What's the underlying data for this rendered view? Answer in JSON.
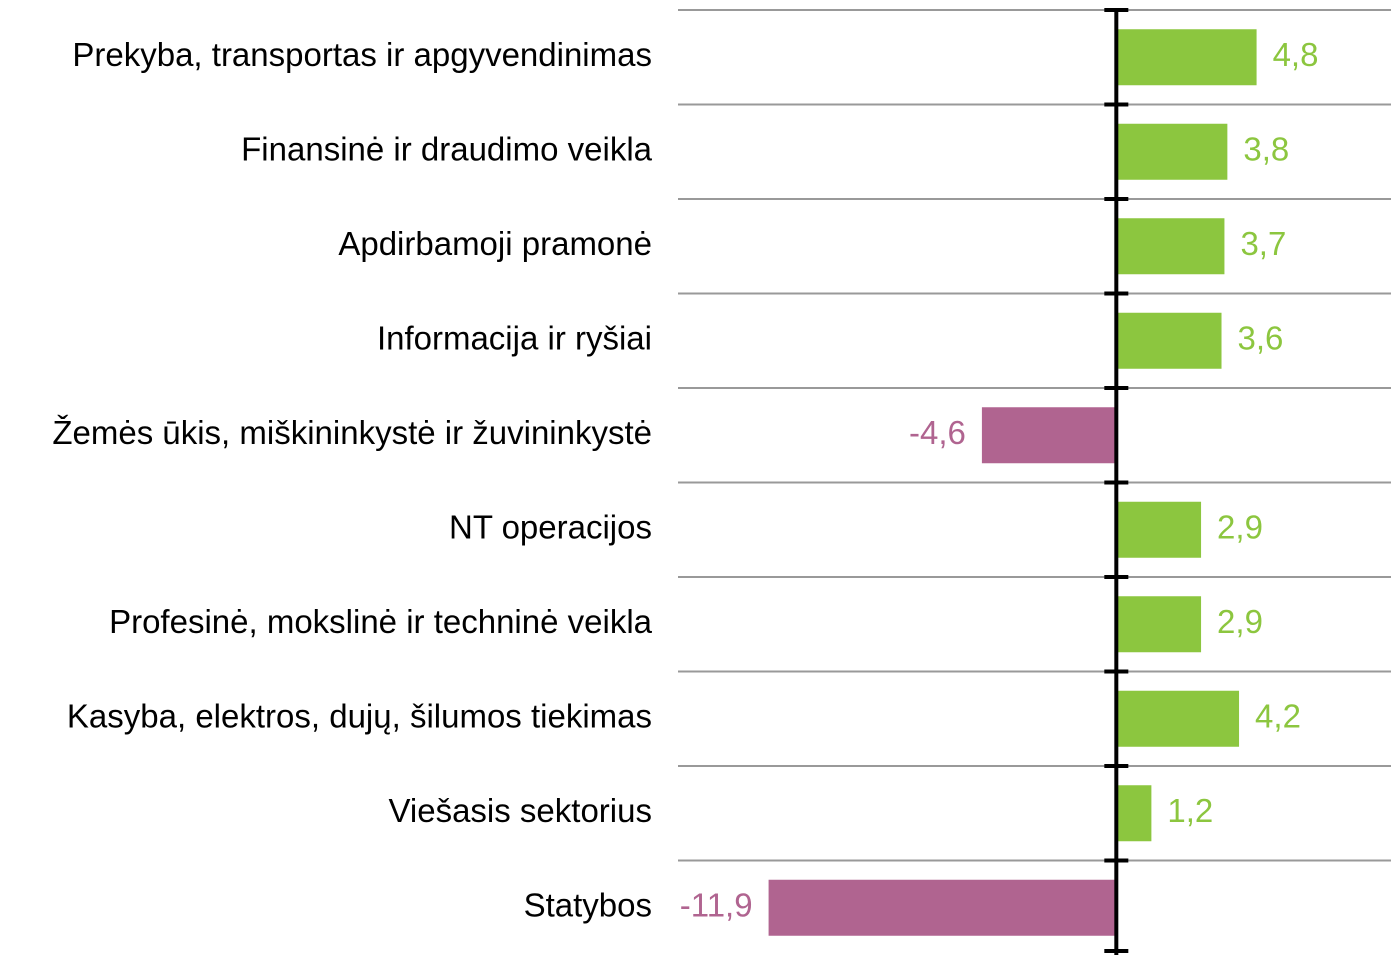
{
  "chart_data": {
    "type": "hbar",
    "categories": [
      "Prekyba, transportas ir apgyvendinimas",
      "Finansinė ir draudimo veikla",
      "Apdirbamoji pramonė",
      "Informacija ir ryšiai",
      "Žemės ūkis, miškininkystė ir žuvininkystė",
      "NT operacijos",
      "Profesinė, mokslinė ir techninė veikla",
      "Kasyba, elektros, dujų, šilumos tiekimas",
      "Viešasis sektorius",
      "Statybos"
    ],
    "values": [
      4.8,
      3.8,
      3.7,
      3.6,
      -4.6,
      2.9,
      2.9,
      4.2,
      1.2,
      -11.9
    ],
    "value_labels": [
      "4,8",
      "3,8",
      "3,7",
      "3,6",
      "-4,6",
      "2,9",
      "2,9",
      "4,2",
      "1,2",
      "-11,9"
    ],
    "positive_color": "#8cc63f",
    "negative_color": "#b06490",
    "xlim": [
      -15,
      9.4
    ],
    "grid": true
  }
}
